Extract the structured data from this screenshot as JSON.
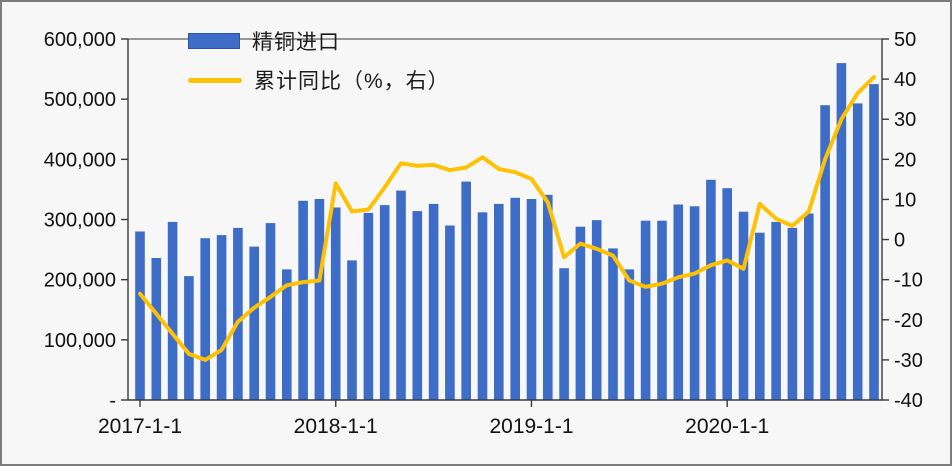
{
  "chart_data": {
    "type": "combo-bar-line",
    "title": "",
    "categories": [
      "2017-01",
      "2017-02",
      "2017-03",
      "2017-04",
      "2017-05",
      "2017-06",
      "2017-07",
      "2017-08",
      "2017-09",
      "2017-10",
      "2017-11",
      "2017-12",
      "2018-01",
      "2018-02",
      "2018-03",
      "2018-04",
      "2018-05",
      "2018-06",
      "2018-07",
      "2018-08",
      "2018-09",
      "2018-10",
      "2018-11",
      "2018-12",
      "2019-01",
      "2019-02",
      "2019-03",
      "2019-04",
      "2019-05",
      "2019-06",
      "2019-07",
      "2019-08",
      "2019-09",
      "2019-10",
      "2019-11",
      "2019-12",
      "2020-01",
      "2020-02",
      "2020-03",
      "2020-04",
      "2020-05",
      "2020-06",
      "2020-07",
      "2020-08",
      "2020-09",
      "2020-10"
    ],
    "series": [
      {
        "name": "精铜进口",
        "type": "bar",
        "axis": "left",
        "color": "#3e6dc7",
        "values": [
          280000,
          236000,
          296000,
          206000,
          269000,
          274000,
          286000,
          255000,
          294000,
          217000,
          331000,
          334000,
          320000,
          232000,
          311000,
          324000,
          348000,
          314000,
          326000,
          290000,
          363000,
          312000,
          326000,
          336000,
          334000,
          341000,
          219000,
          288000,
          299000,
          252000,
          217000,
          298000,
          298000,
          325000,
          322000,
          366000,
          352000,
          313000,
          278000,
          296000,
          286000,
          310000,
          490000,
          560000,
          493000,
          525000
        ]
      },
      {
        "name": "累计同比（%，右）",
        "type": "line",
        "axis": "right",
        "color": "#fec103",
        "values": [
          -13.5,
          -18.5,
          -23.5,
          -28.5,
          -30,
          -27.5,
          -20.5,
          -17,
          -14.3,
          -11.4,
          -10.6,
          -10.2,
          14,
          7,
          7.5,
          13,
          19,
          18.4,
          18.6,
          17.3,
          18,
          20.5,
          17.6,
          16.8,
          15.1,
          9.3,
          -4.4,
          -1,
          -2.3,
          -4,
          -10.2,
          -11.8,
          -11,
          -9.4,
          -8.5,
          -6.4,
          -5.2,
          -7.3,
          8.9,
          5.2,
          3.4,
          7,
          20,
          30,
          36.5,
          40.5
        ]
      }
    ],
    "left_axis": {
      "min": 0,
      "max": 600000,
      "tick_step": 100000,
      "tick_labels_bottom_to_top": [
        "-",
        "100,000",
        "200,000",
        "300,000",
        "400,000",
        "500,000",
        "600,000"
      ]
    },
    "right_axis": {
      "min": -40,
      "max": 50,
      "tick_step": 10,
      "tick_labels_top_to_bottom": [
        "50",
        "40",
        "30",
        "20",
        "10",
        "0",
        "-10",
        "-20",
        "-30",
        "-40"
      ]
    },
    "x_ticks": [
      {
        "index": 0,
        "label": "2017-1-1"
      },
      {
        "index": 12,
        "label": "2018-1-1"
      },
      {
        "index": 24,
        "label": "2019-1-1"
      },
      {
        "index": 36,
        "label": "2020-1-1"
      }
    ],
    "legend": {
      "position": "top-left",
      "items": [
        {
          "label": "精铜进口",
          "marker": "bar-swatch"
        },
        {
          "label": "累计同比（%，右）",
          "marker": "line-swatch"
        }
      ]
    },
    "grid": false,
    "colors": {
      "bar": "#3e6dc7",
      "line": "#fec103",
      "spine": "#3a3a3a",
      "text": "#111111",
      "background": "#f7f7f8",
      "border": "#7d7d7d"
    }
  }
}
